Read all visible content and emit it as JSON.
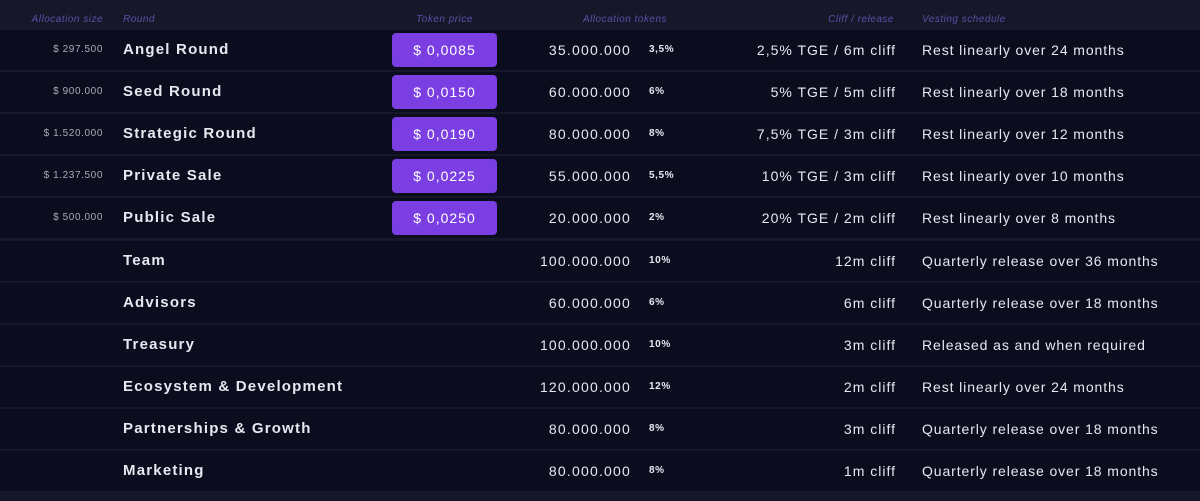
{
  "table": {
    "headers": {
      "allocation_size": "Allocation size",
      "round": "Round",
      "token_price": "Token price",
      "allocation_tokens": "Allocation tokens",
      "cliff": "Cliff / release",
      "vesting": "Vesting schedule"
    },
    "rows": [
      {
        "allocation_size": "$ 297.500",
        "round": "Angel Round",
        "token_price": "$ 0,0085",
        "tokens": "35.000.000",
        "percent": "3,5%",
        "cliff": "2,5% TGE / 6m cliff",
        "vesting": "Rest linearly over 24 months"
      },
      {
        "allocation_size": "$ 900.000",
        "round": "Seed Round",
        "token_price": "$ 0,0150",
        "tokens": "60.000.000",
        "percent": "6%",
        "cliff": "5% TGE / 5m cliff",
        "vesting": "Rest linearly over 18 months"
      },
      {
        "allocation_size": "$ 1.520.000",
        "round": "Strategic Round",
        "token_price": "$ 0,0190",
        "tokens": "80.000.000",
        "percent": "8%",
        "cliff": "7,5% TGE / 3m cliff",
        "vesting": "Rest linearly over 12 months"
      },
      {
        "allocation_size": "$ 1.237.500",
        "round": "Private Sale",
        "token_price": "$ 0,0225",
        "tokens": "55.000.000",
        "percent": "5,5%",
        "cliff": "10% TGE / 3m cliff",
        "vesting": "Rest linearly over 10 months"
      },
      {
        "allocation_size": "$ 500.000",
        "round": "Public Sale",
        "token_price": "$ 0,0250",
        "tokens": "20.000.000",
        "percent": "2%",
        "cliff": "20% TGE / 2m cliff",
        "vesting": "Rest linearly over 8 months"
      },
      {
        "round": "Team",
        "tokens": "100.000.000",
        "percent": "10%",
        "cliff": "12m cliff",
        "vesting": "Quarterly release over 36 months"
      },
      {
        "round": "Advisors",
        "tokens": "60.000.000",
        "percent": "6%",
        "cliff": "6m cliff",
        "vesting": "Quarterly release over 18 months"
      },
      {
        "round": "Treasury",
        "tokens": "100.000.000",
        "percent": "10%",
        "cliff": "3m cliff",
        "vesting": "Released as and when required"
      },
      {
        "round": "Ecosystem & Development",
        "tokens": "120.000.000",
        "percent": "12%",
        "cliff": "2m cliff",
        "vesting": "Rest linearly over 24 months"
      },
      {
        "round": "Partnerships & Growth",
        "tokens": "80.000.000",
        "percent": "8%",
        "cliff": "3m cliff",
        "vesting": "Quarterly release over 18 months"
      },
      {
        "round": "Marketing",
        "tokens": "80.000.000",
        "percent": "8%",
        "cliff": "1m cliff",
        "vesting": "Quarterly release over 18 months"
      }
    ]
  }
}
